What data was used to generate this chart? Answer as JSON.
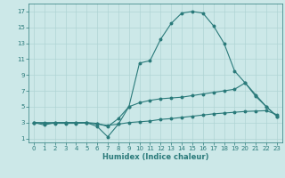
{
  "xlabel": "Humidex (Indice chaleur)",
  "ylabel": "",
  "background_color": "#cce8e8",
  "grid_color": "#b0d4d4",
  "line_color": "#2a7a7a",
  "xlim": [
    -0.5,
    23.5
  ],
  "ylim": [
    0.5,
    18
  ],
  "xticks": [
    0,
    1,
    2,
    3,
    4,
    5,
    6,
    7,
    8,
    9,
    10,
    11,
    12,
    13,
    14,
    15,
    16,
    17,
    18,
    19,
    20,
    21,
    22,
    23
  ],
  "yticks": [
    1,
    3,
    5,
    7,
    9,
    11,
    13,
    15,
    17
  ],
  "series": [
    {
      "x": [
        0,
        1,
        2,
        3,
        4,
        5,
        6,
        7,
        8,
        9,
        10,
        11,
        12,
        13,
        14,
        15,
        16,
        17,
        18,
        19,
        20,
        21,
        22,
        23
      ],
      "y": [
        3,
        2.7,
        3,
        3,
        3,
        3,
        2.5,
        1.2,
        2.8,
        5,
        10.5,
        10.8,
        13.5,
        15.5,
        16.8,
        17,
        16.8,
        15.2,
        13,
        9.5,
        8,
        6.3,
        5,
        3.8
      ]
    },
    {
      "x": [
        0,
        1,
        2,
        3,
        4,
        5,
        6,
        7,
        8,
        9,
        10,
        11,
        12,
        13,
        14,
        15,
        16,
        17,
        18,
        19,
        20,
        21,
        22,
        23
      ],
      "y": [
        3,
        2.9,
        2.9,
        2.9,
        2.9,
        2.95,
        2.8,
        2.65,
        2.8,
        3.0,
        3.1,
        3.2,
        3.4,
        3.5,
        3.65,
        3.8,
        3.95,
        4.1,
        4.2,
        4.3,
        4.4,
        4.45,
        4.5,
        4.0
      ]
    },
    {
      "x": [
        0,
        1,
        2,
        3,
        4,
        5,
        6,
        7,
        8,
        9,
        10,
        11,
        12,
        13,
        14,
        15,
        16,
        17,
        18,
        19,
        20,
        21,
        22,
        23
      ],
      "y": [
        3,
        3,
        3,
        3,
        3,
        3,
        2.9,
        2.5,
        3.5,
        5,
        5.5,
        5.8,
        6.0,
        6.1,
        6.2,
        6.4,
        6.6,
        6.8,
        7.0,
        7.2,
        8,
        6.5,
        5,
        3.8
      ]
    }
  ]
}
